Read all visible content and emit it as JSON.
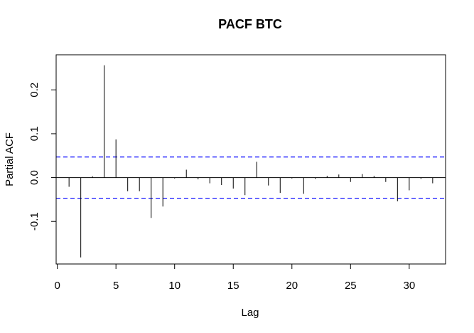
{
  "chart_data": {
    "type": "bar",
    "title": "PACF BTC",
    "xlabel": "Lag",
    "ylabel": "Partial ACF",
    "xlim": [
      -0.1,
      33.1
    ],
    "ylim": [
      -0.197,
      0.28
    ],
    "x_ticks": [
      0,
      5,
      10,
      15,
      20,
      25,
      30
    ],
    "x_tick_labels": [
      "0",
      "5",
      "10",
      "15",
      "20",
      "25",
      "30"
    ],
    "y_ticks": [
      -0.1,
      0.0,
      0.1,
      0.2
    ],
    "y_tick_labels": [
      "-0.1",
      "0.0",
      "0.1",
      "0.2"
    ],
    "grid": false,
    "confidence_band": 0.047,
    "confidence_color": "#0000ff",
    "zero_line": true,
    "x": [
      1,
      2,
      3,
      4,
      5,
      6,
      7,
      8,
      9,
      10,
      11,
      12,
      13,
      14,
      15,
      16,
      17,
      18,
      19,
      20,
      21,
      22,
      23,
      24,
      25,
      26,
      27,
      28,
      29,
      30,
      31,
      32
    ],
    "values": [
      -0.021,
      -0.182,
      0.003,
      0.256,
      0.087,
      -0.031,
      -0.031,
      -0.092,
      -0.066,
      -0.002,
      0.018,
      -0.004,
      -0.013,
      -0.017,
      -0.025,
      -0.04,
      0.036,
      -0.018,
      -0.035,
      -0.002,
      -0.037,
      -0.003,
      0.004,
      0.007,
      -0.01,
      0.008,
      0.004,
      -0.01,
      -0.054,
      -0.029,
      -0.003,
      -0.013
    ]
  }
}
